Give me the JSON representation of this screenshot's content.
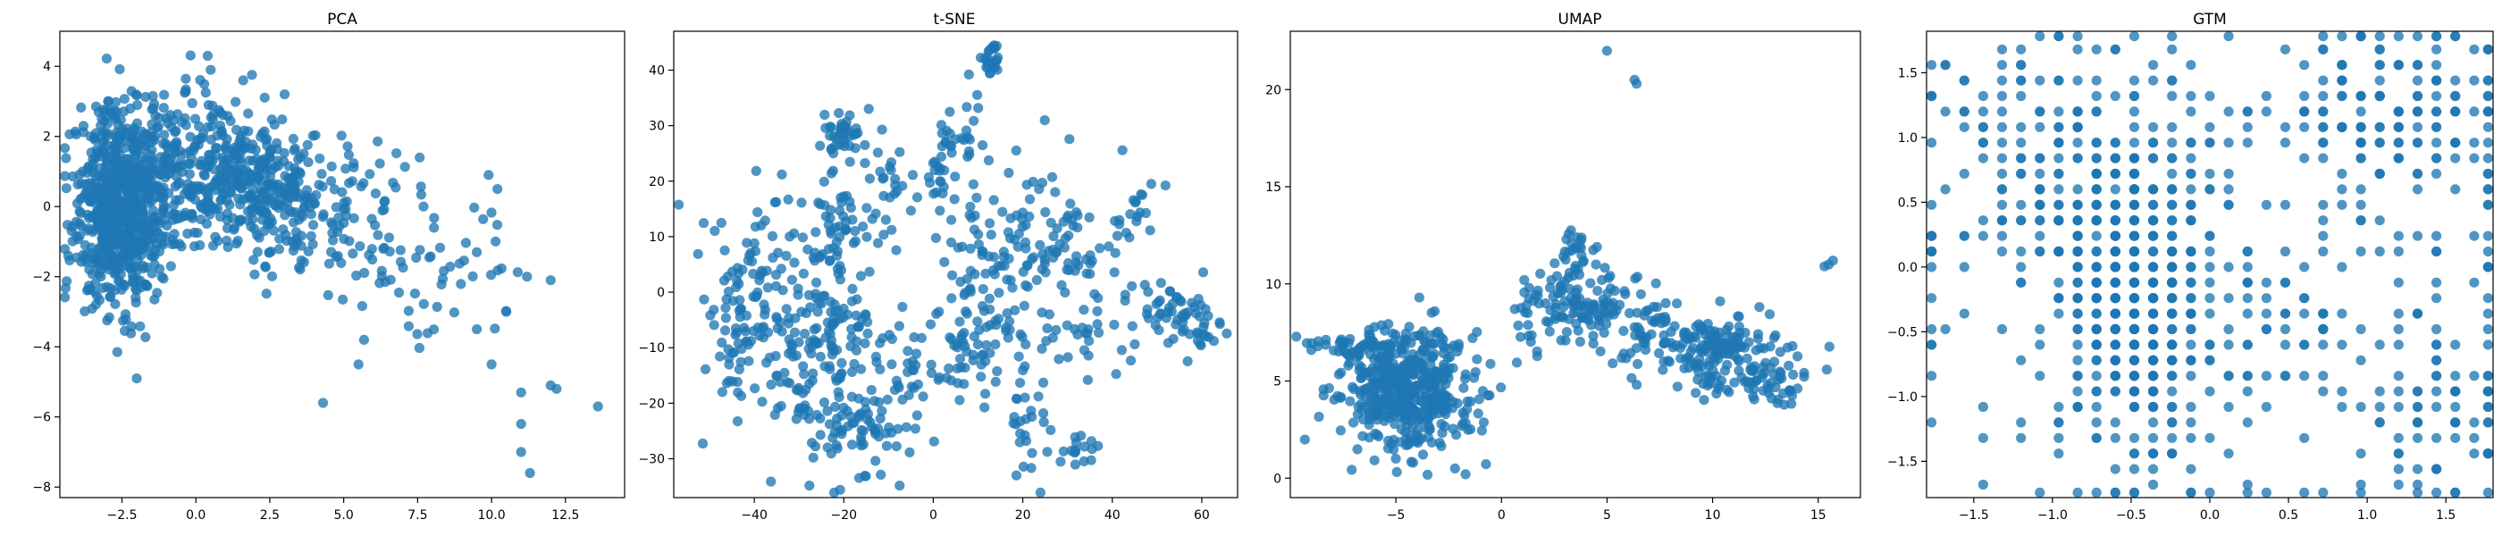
{
  "chart_data": [
    {
      "type": "scatter",
      "title": "PCA",
      "xlabel": "",
      "ylabel": "",
      "xlim": [
        -4.6,
        14.5
      ],
      "ylim": [
        -8.3,
        5.0
      ],
      "xticks": [
        -2.5,
        0.0,
        2.5,
        5.0,
        7.5,
        10.0,
        12.5
      ],
      "xtick_labels": [
        "−2.5",
        "0.0",
        "2.5",
        "5.0",
        "7.5",
        "10.0",
        "12.5"
      ],
      "yticks": [
        -8,
        -6,
        -4,
        -2,
        0,
        2,
        4
      ],
      "ytick_labels": [
        "−8",
        "−6",
        "−4",
        "−2",
        "0",
        "2",
        "4"
      ],
      "grid": false,
      "color": "#1f77b4",
      "clusters": [
        {
          "cx": -2.6,
          "cy": 0.0,
          "sx": 0.75,
          "sy": 1.4,
          "n": 650
        },
        {
          "cx": -1.2,
          "cy": 0.8,
          "sx": 1.0,
          "sy": 1.1,
          "n": 150
        },
        {
          "cx": 0.5,
          "cy": 1.3,
          "sx": 1.1,
          "sy": 1.1,
          "n": 160
        },
        {
          "cx": 2.4,
          "cy": 0.4,
          "sx": 1.1,
          "sy": 0.9,
          "n": 240
        },
        {
          "cx": 4.8,
          "cy": -0.6,
          "sx": 1.5,
          "sy": 1.3,
          "n": 90
        },
        {
          "cx": 8.0,
          "cy": -1.5,
          "sx": 1.6,
          "sy": 1.1,
          "n": 45
        }
      ],
      "points": [
        [
          0.4,
          4.3
        ],
        [
          0.5,
          3.9
        ],
        [
          1.6,
          3.6
        ],
        [
          3.0,
          3.2
        ],
        [
          -2.0,
          -4.9
        ],
        [
          4.3,
          -5.6
        ],
        [
          5.5,
          -4.5
        ],
        [
          9.5,
          -3.5
        ],
        [
          10.0,
          -4.5
        ],
        [
          11.0,
          -5.3
        ],
        [
          11.0,
          -6.2
        ],
        [
          11.0,
          -7.0
        ],
        [
          11.3,
          -7.6
        ],
        [
          12.0,
          -5.1
        ],
        [
          12.2,
          -5.2
        ],
        [
          13.6,
          -5.7
        ],
        [
          12.0,
          -2.1
        ],
        [
          11.2,
          -2.0
        ],
        [
          9.9,
          0.9
        ],
        [
          10.2,
          0.5
        ],
        [
          7.7,
          0.0
        ],
        [
          9.5,
          -1.3
        ],
        [
          10.5,
          -3.0
        ]
      ]
    },
    {
      "type": "scatter",
      "title": "t-SNE",
      "xlabel": "",
      "ylabel": "",
      "xlim": [
        -58,
        68
      ],
      "ylim": [
        -37,
        47
      ],
      "xticks": [
        -40,
        -20,
        0,
        20,
        40,
        60
      ],
      "xtick_labels": [
        "−40",
        "−20",
        "0",
        "20",
        "40",
        "60"
      ],
      "yticks": [
        -30,
        -20,
        -10,
        0,
        10,
        20,
        30,
        40
      ],
      "ytick_labels": [
        "−30",
        "−20",
        "−10",
        "0",
        "10",
        "20",
        "30",
        "40"
      ],
      "grid": false,
      "color": "#1f77b4",
      "clusters": [
        {
          "cx": -45,
          "cy": -8,
          "sx": 5.0,
          "sy": 9.0,
          "n": 70
        },
        {
          "cx": -36,
          "cy": 2,
          "sx": 4.0,
          "sy": 10.0,
          "n": 60
        },
        {
          "cx": -30,
          "cy": -15,
          "sx": 5.0,
          "sy": 6.0,
          "n": 60
        },
        {
          "cx": -20,
          "cy": 29,
          "sx": 2.5,
          "sy": 2.5,
          "n": 40
        },
        {
          "cx": -22,
          "cy": 12,
          "sx": 4.0,
          "sy": 5.0,
          "n": 50
        },
        {
          "cx": -20,
          "cy": -5,
          "sx": 5.0,
          "sy": 6.0,
          "n": 70
        },
        {
          "cx": -18,
          "cy": -25,
          "sx": 5.0,
          "sy": 5.0,
          "n": 70
        },
        {
          "cx": -7,
          "cy": -17,
          "sx": 5.0,
          "sy": 6.0,
          "n": 40
        },
        {
          "cx": -10,
          "cy": 20,
          "sx": 3.0,
          "sy": 4.0,
          "n": 25
        },
        {
          "cx": 0,
          "cy": 21,
          "sx": 2.0,
          "sy": 2.0,
          "n": 15
        },
        {
          "cx": 6,
          "cy": 27,
          "sx": 3.0,
          "sy": 4.0,
          "n": 30
        },
        {
          "cx": 13,
          "cy": 42,
          "sx": 1.0,
          "sy": 1.5,
          "n": 25
        },
        {
          "cx": 10,
          "cy": 5,
          "sx": 5.0,
          "sy": 7.0,
          "n": 60
        },
        {
          "cx": 8,
          "cy": -10,
          "sx": 5.0,
          "sy": 4.0,
          "n": 50
        },
        {
          "cx": 22,
          "cy": -24,
          "sx": 3.0,
          "sy": 5.0,
          "n": 30
        },
        {
          "cx": 22,
          "cy": 12,
          "sx": 5.0,
          "sy": 8.0,
          "n": 60
        },
        {
          "cx": 33,
          "cy": 0,
          "sx": 6.0,
          "sy": 8.0,
          "n": 60
        },
        {
          "cx": 33,
          "cy": -29,
          "sx": 1.5,
          "sy": 1.5,
          "n": 15
        },
        {
          "cx": 45,
          "cy": 15,
          "sx": 2.5,
          "sy": 4.0,
          "n": 20
        },
        {
          "cx": 52,
          "cy": -3,
          "sx": 5.0,
          "sy": 3.0,
          "n": 40
        },
        {
          "cx": 58,
          "cy": -7,
          "sx": 4.0,
          "sy": 2.0,
          "n": 25
        }
      ],
      "points": []
    },
    {
      "type": "scatter",
      "title": "UMAP",
      "xlabel": "",
      "ylabel": "",
      "xlim": [
        -10.0,
        17.0
      ],
      "ylim": [
        -1.0,
        23.0
      ],
      "xticks": [
        -5,
        0,
        5,
        10,
        15
      ],
      "xtick_labels": [
        "−5",
        "0",
        "5",
        "10",
        "15"
      ],
      "yticks": [
        0,
        5,
        10,
        15,
        20
      ],
      "ytick_labels": [
        "0",
        "5",
        "10",
        "15",
        "20"
      ],
      "grid": false,
      "color": "#1f77b4",
      "clusters": [
        {
          "cx": -4.5,
          "cy": 4.5,
          "sx": 1.6,
          "sy": 1.6,
          "n": 500
        },
        {
          "cx": -7.0,
          "cy": 6.6,
          "sx": 1.0,
          "sy": 0.4,
          "n": 40
        },
        {
          "cx": 4.0,
          "cy": 8.8,
          "sx": 1.1,
          "sy": 1.2,
          "n": 110
        },
        {
          "cx": 3.6,
          "cy": 11.5,
          "sx": 0.4,
          "sy": 0.6,
          "n": 20
        },
        {
          "cx": 7.0,
          "cy": 7.8,
          "sx": 0.8,
          "sy": 1.2,
          "n": 50
        },
        {
          "cx": 10.3,
          "cy": 6.5,
          "sx": 1.3,
          "sy": 1.0,
          "n": 170
        },
        {
          "cx": 13.2,
          "cy": 5.0,
          "sx": 0.7,
          "sy": 0.6,
          "n": 35
        },
        {
          "cx": 1.2,
          "cy": 8.5,
          "sx": 0.3,
          "sy": 1.3,
          "n": 20
        }
      ],
      "points": [
        [
          5.0,
          22.0
        ],
        [
          6.3,
          20.5
        ],
        [
          6.4,
          20.3
        ],
        [
          15.5,
          11.0
        ],
        [
          15.7,
          11.2
        ],
        [
          15.3,
          10.9
        ],
        [
          -1.7,
          0.2
        ],
        [
          -2.2,
          0.5
        ],
        [
          2.3,
          9.8
        ]
      ]
    },
    {
      "type": "scatter",
      "title": "GTM",
      "xlabel": "",
      "ylabel": "",
      "xlim": [
        -1.8,
        1.8
      ],
      "ylim": [
        -1.78,
        1.82
      ],
      "xticks": [
        -1.5,
        -1.0,
        -0.5,
        0.0,
        0.5,
        1.0,
        1.5
      ],
      "xtick_labels": [
        "−1.5",
        "−1.0",
        "−0.5",
        "0.0",
        "0.5",
        "1.0",
        "1.5"
      ],
      "yticks": [
        -1.5,
        -1.0,
        -0.5,
        0.0,
        0.5,
        1.0,
        1.5
      ],
      "ytick_labels": [
        "−1.5",
        "−1.0",
        "−0.5",
        "0.0",
        "0.5",
        "1.0",
        "1.5"
      ],
      "grid": false,
      "color": "#1f77b4",
      "clusters": [
        {
          "cx": -0.45,
          "cy": -0.3,
          "sx": 0.2,
          "sy": 0.55,
          "n": 320,
          "grid": true
        },
        {
          "cx": -0.6,
          "cy": 0.4,
          "sx": 0.25,
          "sy": 0.5,
          "n": 120,
          "grid": true
        },
        {
          "cx": 1.2,
          "cy": 1.2,
          "sx": 0.35,
          "sy": 0.35,
          "n": 120,
          "grid": true
        },
        {
          "cx": 0.0,
          "cy": 0.0,
          "sx": 1.0,
          "sy": 1.0,
          "n": 350,
          "grid": true
        },
        {
          "cx": -1.2,
          "cy": 1.0,
          "sx": 0.35,
          "sy": 0.5,
          "n": 80,
          "grid": true
        },
        {
          "cx": 1.5,
          "cy": -1.2,
          "sx": 0.25,
          "sy": 0.3,
          "n": 60,
          "grid": true
        }
      ],
      "points": []
    }
  ]
}
